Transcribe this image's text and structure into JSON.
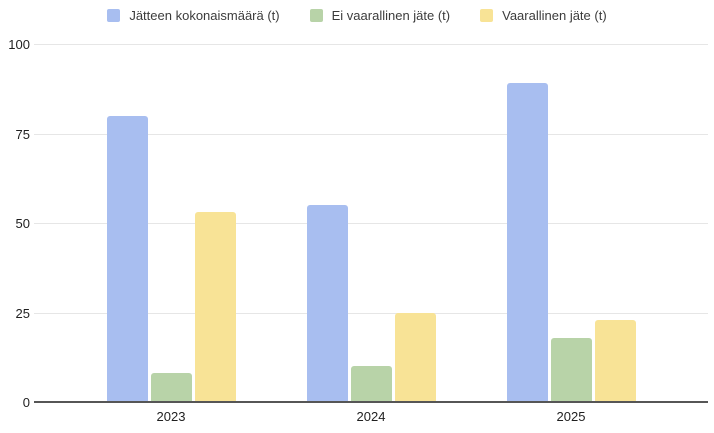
{
  "chart_data": {
    "type": "bar",
    "categories": [
      "2023",
      "2024",
      "2025"
    ],
    "series": [
      {
        "name": "Jätteen kokonaismäärä (t)",
        "color": "#a8bef0",
        "values": [
          80,
          55,
          89
        ]
      },
      {
        "name": "Ei vaarallinen jäte (t)",
        "color": "#b8d3a8",
        "values": [
          8,
          10,
          18
        ]
      },
      {
        "name": "Vaarallinen jäte (t)",
        "color": "#f8e396",
        "values": [
          53,
          25,
          23
        ]
      }
    ],
    "title": "",
    "xlabel": "",
    "ylabel": "",
    "ylim": [
      0,
      100
    ],
    "yticks": [
      0,
      25,
      50,
      75,
      100
    ],
    "grid": true,
    "legend_position": "top"
  },
  "style": {
    "gridline_color": "#e6e6e6",
    "axis_line_color": "#565656",
    "tick_label_color": "#1f1f1f",
    "legend_text_color": "#3c3c3c",
    "background": "#ffffff"
  }
}
